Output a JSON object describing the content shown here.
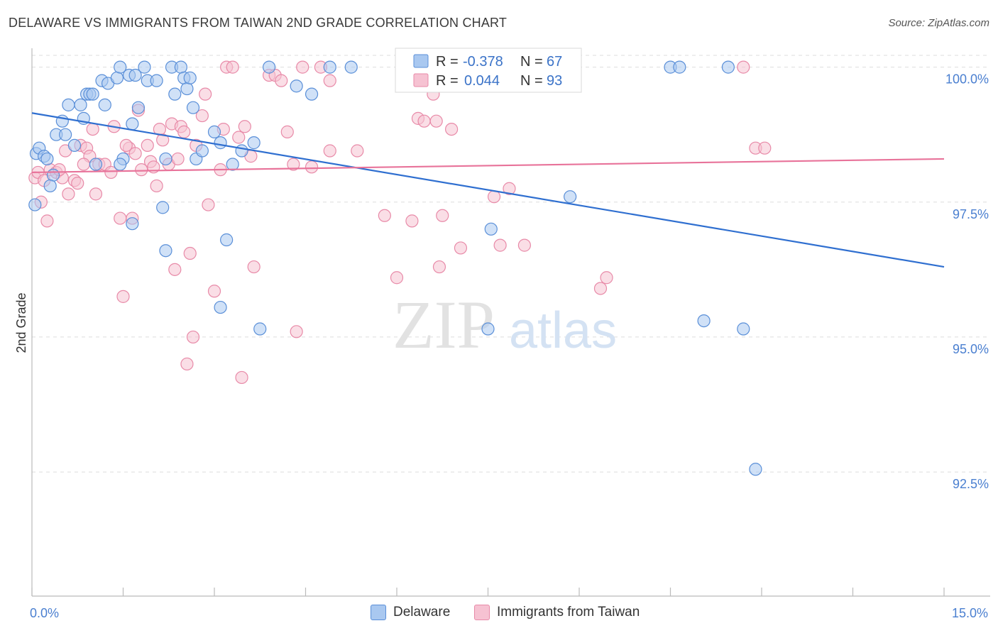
{
  "title": "DELAWARE VS IMMIGRANTS FROM TAIWAN 2ND GRADE CORRELATION CHART",
  "source": "Source: ZipAtlas.com",
  "watermark": {
    "zip": "ZIP",
    "atlas": "atlas"
  },
  "colors": {
    "delaware_fill": "#a9c8f0",
    "delaware_stroke": "#5a8fd8",
    "delaware_line": "#2f6fd0",
    "taiwan_fill": "#f6c2d2",
    "taiwan_stroke": "#e88aa8",
    "taiwan_line": "#e8739a",
    "tick_label": "#4a7fd0",
    "grid": "#dddddd"
  },
  "legend": {
    "r_label": "R =",
    "n_label": "N =",
    "delaware": {
      "r": "-0.378",
      "n": "67"
    },
    "taiwan": {
      "r": "0.044",
      "n": "93"
    }
  },
  "bottom_legend": {
    "delaware": "Delaware",
    "taiwan": "Immigrants from Taiwan"
  },
  "chart_data": {
    "type": "scatter",
    "title": "DELAWARE VS IMMIGRANTS FROM TAIWAN 2ND GRADE CORRELATION CHART",
    "xlabel": "",
    "ylabel": "2nd Grade",
    "xlim": [
      0,
      15
    ],
    "ylim": [
      90.2,
      100.35
    ],
    "x_ticks": [
      {
        "v": 0,
        "label": "0.0%"
      },
      {
        "v": 15,
        "label": "15.0%"
      }
    ],
    "y_ticks": [
      {
        "v": 100,
        "label": "100.0%"
      },
      {
        "v": 97.5,
        "label": "97.5%"
      },
      {
        "v": 95,
        "label": "95.0%"
      },
      {
        "v": 92.5,
        "label": "92.5%"
      }
    ],
    "grid": true,
    "legend_position": "top",
    "series": [
      {
        "name": "Delaware",
        "trend": [
          [
            0,
            99.15
          ],
          [
            15,
            96.3
          ]
        ],
        "points": [
          [
            0.05,
            97.45
          ],
          [
            0.07,
            98.4
          ],
          [
            0.12,
            98.5
          ],
          [
            0.2,
            98.35
          ],
          [
            0.25,
            98.3
          ],
          [
            0.35,
            98.0
          ],
          [
            0.4,
            98.75
          ],
          [
            0.3,
            97.8
          ],
          [
            0.5,
            99.0
          ],
          [
            0.6,
            99.3
          ],
          [
            0.55,
            98.75
          ],
          [
            0.7,
            98.55
          ],
          [
            0.8,
            99.3
          ],
          [
            0.85,
            99.05
          ],
          [
            0.9,
            99.5
          ],
          [
            0.95,
            99.5
          ],
          [
            1.0,
            99.5
          ],
          [
            1.15,
            99.75
          ],
          [
            1.2,
            99.3
          ],
          [
            1.25,
            99.7
          ],
          [
            1.4,
            99.8
          ],
          [
            1.45,
            100.0
          ],
          [
            1.5,
            98.3
          ],
          [
            1.6,
            99.85
          ],
          [
            1.65,
            98.95
          ],
          [
            1.7,
            99.85
          ],
          [
            1.75,
            99.25
          ],
          [
            1.85,
            100.0
          ],
          [
            1.9,
            99.75
          ],
          [
            2.05,
            99.75
          ],
          [
            2.15,
            97.4
          ],
          [
            2.2,
            96.6
          ],
          [
            2.3,
            100.0
          ],
          [
            2.35,
            99.5
          ],
          [
            2.45,
            100.0
          ],
          [
            2.5,
            99.8
          ],
          [
            2.55,
            99.6
          ],
          [
            2.6,
            99.8
          ],
          [
            2.65,
            99.25
          ],
          [
            2.7,
            98.3
          ],
          [
            2.8,
            98.45
          ],
          [
            3.0,
            98.8
          ],
          [
            3.1,
            98.6
          ],
          [
            3.2,
            96.8
          ],
          [
            3.3,
            98.2
          ],
          [
            3.45,
            98.45
          ],
          [
            3.65,
            98.6
          ],
          [
            3.75,
            95.15
          ],
          [
            1.65,
            97.1
          ],
          [
            1.45,
            98.2
          ],
          [
            2.2,
            98.3
          ],
          [
            3.1,
            95.55
          ],
          [
            3.9,
            100.0
          ],
          [
            4.35,
            99.65
          ],
          [
            4.6,
            99.5
          ],
          [
            4.9,
            100.0
          ],
          [
            5.25,
            100.0
          ],
          [
            7.5,
            95.15
          ],
          [
            7.55,
            97.0
          ],
          [
            8.85,
            97.6
          ],
          [
            10.5,
            100.0
          ],
          [
            10.65,
            100.0
          ],
          [
            11.45,
            100.0
          ],
          [
            11.05,
            95.3
          ],
          [
            11.7,
            95.15
          ],
          [
            11.9,
            92.55
          ],
          [
            1.05,
            98.2
          ]
        ]
      },
      {
        "name": "Immigrants from Taiwan",
        "trend": [
          [
            0,
            98.05
          ],
          [
            15,
            98.3
          ]
        ],
        "points": [
          [
            0.05,
            97.95
          ],
          [
            0.1,
            98.05
          ],
          [
            0.15,
            97.5
          ],
          [
            0.25,
            97.15
          ],
          [
            0.3,
            98.1
          ],
          [
            0.4,
            98.05
          ],
          [
            0.5,
            97.95
          ],
          [
            0.55,
            98.45
          ],
          [
            0.6,
            97.65
          ],
          [
            0.7,
            97.9
          ],
          [
            0.75,
            97.85
          ],
          [
            0.8,
            98.55
          ],
          [
            0.9,
            98.5
          ],
          [
            0.95,
            98.35
          ],
          [
            1.0,
            98.85
          ],
          [
            1.05,
            97.65
          ],
          [
            1.1,
            98.2
          ],
          [
            1.2,
            98.2
          ],
          [
            1.3,
            98.05
          ],
          [
            1.35,
            98.9
          ],
          [
            1.45,
            97.2
          ],
          [
            1.5,
            95.75
          ],
          [
            1.6,
            98.5
          ],
          [
            1.65,
            97.2
          ],
          [
            1.7,
            98.4
          ],
          [
            1.75,
            99.2
          ],
          [
            1.8,
            98.1
          ],
          [
            1.9,
            98.55
          ],
          [
            1.95,
            98.25
          ],
          [
            2.0,
            98.15
          ],
          [
            2.05,
            97.8
          ],
          [
            2.1,
            98.85
          ],
          [
            2.15,
            98.65
          ],
          [
            2.25,
            98.2
          ],
          [
            2.3,
            98.95
          ],
          [
            2.35,
            96.25
          ],
          [
            2.4,
            98.3
          ],
          [
            2.45,
            98.9
          ],
          [
            2.5,
            98.8
          ],
          [
            2.55,
            94.5
          ],
          [
            2.6,
            96.55
          ],
          [
            2.65,
            95.0
          ],
          [
            2.7,
            98.55
          ],
          [
            2.8,
            99.1
          ],
          [
            2.85,
            99.5
          ],
          [
            2.9,
            97.45
          ],
          [
            3.0,
            95.85
          ],
          [
            3.1,
            98.1
          ],
          [
            3.15,
            98.85
          ],
          [
            3.2,
            100.0
          ],
          [
            3.3,
            100.0
          ],
          [
            3.4,
            98.7
          ],
          [
            3.45,
            94.25
          ],
          [
            3.5,
            98.9
          ],
          [
            3.6,
            98.35
          ],
          [
            3.65,
            96.3
          ],
          [
            3.9,
            99.85
          ],
          [
            4.0,
            99.85
          ],
          [
            4.1,
            99.75
          ],
          [
            4.2,
            98.8
          ],
          [
            4.3,
            98.2
          ],
          [
            4.35,
            95.1
          ],
          [
            4.45,
            100.0
          ],
          [
            4.75,
            100.0
          ],
          [
            4.9,
            99.75
          ],
          [
            4.6,
            98.15
          ],
          [
            4.9,
            98.45
          ],
          [
            5.35,
            98.45
          ],
          [
            5.8,
            97.25
          ],
          [
            6.0,
            96.1
          ],
          [
            6.25,
            97.15
          ],
          [
            6.35,
            99.05
          ],
          [
            6.45,
            99.0
          ],
          [
            6.6,
            100.0
          ],
          [
            6.65,
            99.0
          ],
          [
            6.6,
            99.5
          ],
          [
            6.7,
            96.3
          ],
          [
            6.75,
            97.25
          ],
          [
            6.9,
            98.85
          ],
          [
            7.05,
            96.65
          ],
          [
            7.6,
            97.6
          ],
          [
            7.7,
            96.7
          ],
          [
            7.85,
            97.75
          ],
          [
            8.1,
            96.7
          ],
          [
            9.35,
            95.9
          ],
          [
            9.45,
            96.1
          ],
          [
            11.7,
            100.0
          ],
          [
            11.9,
            98.5
          ],
          [
            12.05,
            98.5
          ],
          [
            0.2,
            97.9
          ],
          [
            0.45,
            98.1
          ],
          [
            0.85,
            98.2
          ],
          [
            1.55,
            98.55
          ]
        ]
      }
    ]
  }
}
